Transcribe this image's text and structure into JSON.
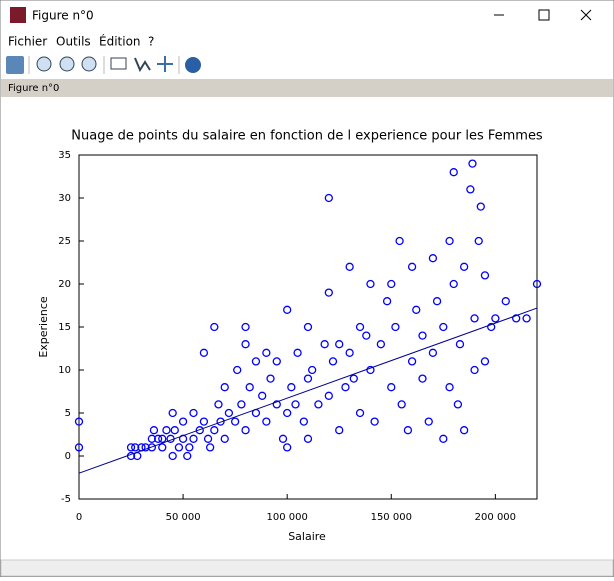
{
  "window": {
    "title": "Figure n°0",
    "menu": [
      "Fichier",
      "Outils",
      "Édition",
      "?"
    ],
    "tab_label": "Figure n°0"
  },
  "chart_data": {
    "type": "scatter",
    "title": "Nuage de points du salaire en fonction de l experience pour les Femmes",
    "x_label": "Salaire",
    "y_label": "Experience",
    "xlim": [
      0,
      220000
    ],
    "ylim": [
      -5,
      35
    ],
    "xticks": [
      0,
      {
        "value": 50000,
        "label": "50 000"
      },
      {
        "value": 100000,
        "label": "100 000"
      },
      {
        "value": 150000,
        "label": "150 000"
      },
      {
        "value": 200000,
        "label": "200 000"
      }
    ],
    "yticks": [
      -5,
      0,
      5,
      10,
      15,
      20,
      25,
      30,
      35
    ],
    "series": [
      {
        "color": "#0000ff",
        "type": "scatter",
        "x": [
          0,
          0,
          25000,
          25000,
          27000,
          28000,
          30000,
          32000,
          35000,
          35000,
          36000,
          38000,
          40000,
          40000,
          42000,
          44000,
          45000,
          45000,
          46000,
          48000,
          50000,
          50000,
          52000,
          53000,
          55000,
          55000,
          58000,
          60000,
          60000,
          62000,
          63000,
          65000,
          65000,
          67000,
          68000,
          70000,
          70000,
          72000,
          75000,
          76000,
          78000,
          80000,
          80000,
          80000,
          82000,
          85000,
          85000,
          88000,
          90000,
          90000,
          92000,
          95000,
          95000,
          98000,
          100000,
          100000,
          100000,
          102000,
          104000,
          105000,
          108000,
          110000,
          110000,
          110000,
          112000,
          115000,
          118000,
          120000,
          120000,
          120000,
          122000,
          125000,
          125000,
          128000,
          130000,
          130000,
          132000,
          135000,
          135000,
          138000,
          140000,
          140000,
          142000,
          145000,
          148000,
          150000,
          150000,
          152000,
          154000,
          155000,
          158000,
          160000,
          160000,
          162000,
          165000,
          165000,
          168000,
          170000,
          170000,
          172000,
          175000,
          175000,
          178000,
          178000,
          180000,
          180000,
          182000,
          183000,
          185000,
          185000,
          188000,
          189000,
          190000,
          190000,
          192000,
          193000,
          195000,
          195000,
          198000,
          200000,
          205000,
          210000,
          215000,
          220000
        ],
        "values": [
          1,
          4,
          0,
          1,
          1,
          0,
          1,
          1,
          1,
          2,
          3,
          2,
          2,
          1,
          3,
          2,
          0,
          5,
          3,
          1,
          2,
          4,
          0,
          1,
          2,
          5,
          3,
          4,
          12,
          2,
          1,
          3,
          15,
          6,
          4,
          2,
          8,
          5,
          4,
          10,
          6,
          3,
          13,
          15,
          8,
          5,
          11,
          7,
          4,
          12,
          9,
          6,
          11,
          2,
          5,
          1,
          17,
          8,
          6,
          12,
          4,
          9,
          15,
          2,
          10,
          6,
          13,
          7,
          19,
          30,
          11,
          3,
          13,
          8,
          22,
          12,
          9,
          5,
          15,
          14,
          10,
          20,
          4,
          13,
          18,
          8,
          20,
          15,
          25,
          6,
          3,
          11,
          22,
          17,
          9,
          14,
          4,
          23,
          12,
          18,
          2,
          15,
          25,
          8,
          33,
          20,
          6,
          13,
          22,
          3,
          31,
          34,
          16,
          10,
          25,
          29,
          21,
          11,
          15,
          16,
          18,
          16,
          16,
          20
        ]
      },
      {
        "color": "#00008b",
        "type": "line",
        "x": [
          0,
          220000
        ],
        "values": [
          -2,
          17.2
        ]
      }
    ]
  }
}
